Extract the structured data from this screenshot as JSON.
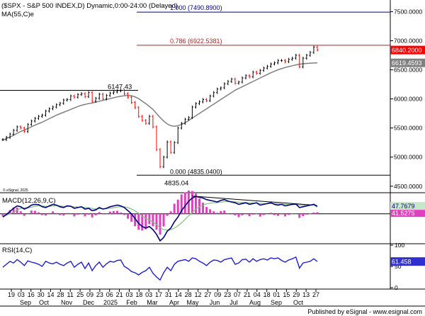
{
  "header": {
    "title": "($SPX - S&P 500 INDEX,D) Dynamic,0:00-24:00 (Delayed)",
    "ma_label": "MA(55,C)e",
    "watermark": "© eSignal, 2025"
  },
  "footer": {
    "text": "Published by eSignal - www.esignal.com"
  },
  "colors": {
    "up": "#000000",
    "down": "#ff0000",
    "ma": "#808080",
    "fib_top": "#00008b",
    "fib_786": "#b22222",
    "last_price_bg": "#ff0000",
    "macd_line": "#000080",
    "macd_signal": "#7fbf7f",
    "macd_hist": "#e040c0",
    "rsi_line": "#1f1fcf",
    "panel_bg": "#ffffff"
  },
  "chart_data": [
    {
      "type": "line",
      "panel": "price",
      "series": [
        {
          "name": "$SPX",
          "values": [
            5300,
            5340,
            5395,
            5460,
            5520,
            5500,
            5440,
            5560,
            5620,
            5665,
            5700,
            5720,
            5790,
            5830,
            5860,
            5900,
            5925,
            5980,
            5990,
            6050,
            6030,
            6075,
            6090,
            6040,
            6110,
            5960,
            6010,
            6080,
            6000,
            6060,
            6100,
            6120,
            6140,
            6147.43,
            6090,
            6030,
            5940,
            5850,
            5700,
            5630,
            5580,
            5700,
            5520,
            5130,
            4835.04,
            5000,
            5260,
            5080,
            5250,
            5500,
            5580,
            5650,
            5680,
            5860,
            5920,
            5950,
            5990,
            5970,
            6050,
            6110,
            6170,
            6190,
            6260,
            6300,
            6340,
            6270,
            6290,
            6360,
            6400,
            6380,
            6460,
            6440,
            6490,
            6530,
            6560,
            6600,
            6620,
            6660,
            6660,
            6640,
            6680,
            6700,
            6750,
            6550,
            6700,
            6750,
            6800,
            6890,
            6840.2
          ]
        },
        {
          "name": "MA(55,C)e",
          "values": [
            5290,
            5320,
            5345,
            5375,
            5410,
            5440,
            5465,
            5490,
            5520,
            5550,
            5575,
            5600,
            5630,
            5660,
            5690,
            5720,
            5745,
            5770,
            5795,
            5820,
            5845,
            5870,
            5890,
            5905,
            5920,
            5930,
            5945,
            5960,
            5975,
            5990,
            6005,
            6020,
            6035,
            6045,
            6055,
            6060,
            6055,
            6035,
            6005,
            5960,
            5920,
            5870,
            5820,
            5750,
            5680,
            5620,
            5570,
            5540,
            5530,
            5540,
            5560,
            5590,
            5630,
            5670,
            5710,
            5750,
            5790,
            5830,
            5870,
            5910,
            5950,
            5990,
            6030,
            6070,
            6110,
            6150,
            6180,
            6210,
            6240,
            6270,
            6300,
            6330,
            6360,
            6390,
            6420,
            6450,
            6475,
            6500,
            6520,
            6540,
            6555,
            6570,
            6585,
            6597,
            6604,
            6610,
            6614,
            6617,
            6619.4593
          ]
        }
      ],
      "ylim": [
        4400,
        7700
      ],
      "y_ticks": [
        "7500.0000",
        "7000.0000",
        "6500.0000",
        "6000.0000",
        "5500.0000",
        "5000.0000",
        "4500.0000"
      ],
      "last_price": "6840.2000",
      "ma_last": "6619.4593",
      "levels": [
        {
          "value": 7490.89,
          "label": "1.000 (7490.8900)",
          "color": "#00008b"
        },
        {
          "value": 6922.5381,
          "label": "0.786 (6922.5381)",
          "color": "#b22222"
        },
        {
          "value": 6147.43,
          "label": "",
          "color": "#000000"
        },
        {
          "value": 4835.04,
          "label": "0.000 (4835.0400)",
          "color": "#000000"
        }
      ],
      "annotations": [
        "6147.43",
        "4835.04"
      ]
    },
    {
      "type": "line",
      "panel": "macd",
      "title": "MACD(12,26,9,C)",
      "series": [
        {
          "name": "MACD",
          "values": [
            -20,
            -5,
            15,
            35,
            50,
            45,
            30,
            40,
            55,
            60,
            58,
            45,
            40,
            50,
            60,
            55,
            45,
            40,
            50,
            48,
            35,
            40,
            45,
            30,
            35,
            20,
            25,
            40,
            30,
            35,
            45,
            50,
            55,
            50,
            40,
            20,
            0,
            -30,
            -60,
            -80,
            -90,
            -80,
            -100,
            -130,
            -170,
            -150,
            -110,
            -90,
            -50,
            -20,
            20,
            50,
            80,
            100,
            110,
            105,
            100,
            90,
            85,
            80,
            75,
            85,
            90,
            80,
            75,
            70,
            60,
            65,
            70,
            60,
            65,
            70,
            55,
            60,
            65,
            70,
            60,
            55,
            60,
            50,
            55,
            60,
            62,
            40,
            45,
            50,
            55,
            60,
            47.7679
          ]
        },
        {
          "name": "Signal",
          "values": [
            -10,
            -8,
            0,
            10,
            25,
            35,
            38,
            38,
            42,
            48,
            52,
            50,
            47,
            47,
            50,
            52,
            50,
            47,
            47,
            48,
            45,
            43,
            43,
            40,
            38,
            34,
            31,
            33,
            32,
            33,
            36,
            39,
            43,
            45,
            44,
            39,
            31,
            19,
            3,
            -14,
            -29,
            -39,
            -51,
            -67,
            -88,
            -100,
            -102,
            -100,
            -90,
            -76,
            -57,
            -35,
            -12,
            10,
            30,
            45,
            56,
            63,
            67,
            70,
            71,
            74,
            77,
            78,
            77,
            76,
            73,
            71,
            71,
            69,
            68,
            68,
            66,
            65,
            65,
            66,
            65,
            63,
            62,
            60,
            59,
            59,
            60,
            56,
            54,
            53,
            54,
            55,
            41.5275
          ]
        }
      ],
      "last_values": [
        "47.7679",
        "41.5275"
      ]
    },
    {
      "type": "line",
      "panel": "rsi",
      "title": "RSI(14,C)",
      "series": [
        {
          "name": "RSI",
          "values": [
            48,
            55,
            62,
            58,
            66,
            60,
            52,
            63,
            60,
            58,
            55,
            50,
            62,
            58,
            56,
            60,
            55,
            52,
            58,
            62,
            48,
            55,
            60,
            45,
            58,
            40,
            52,
            60,
            48,
            56,
            62,
            60,
            64,
            65,
            50,
            45,
            38,
            35,
            30,
            36,
            40,
            48,
            34,
            25,
            18,
            35,
            48,
            40,
            55,
            62,
            64,
            66,
            62,
            70,
            68,
            62,
            58,
            52,
            60,
            65,
            64,
            60,
            66,
            68,
            70,
            55,
            58,
            66,
            67,
            60,
            68,
            62,
            66,
            68,
            65,
            70,
            68,
            70,
            64,
            60,
            65,
            68,
            72,
            46,
            58,
            60,
            62,
            68,
            61.458
          ]
        }
      ],
      "ylim": [
        0,
        100
      ],
      "y_ticks": [
        "100",
        "50",
        "0"
      ],
      "last_value": "61.458"
    }
  ],
  "x_axis": {
    "day_labels": [
      "19",
      "03",
      "16",
      "30",
      "14",
      "28",
      "11",
      "25",
      "09",
      "23",
      "06",
      "21",
      "03",
      "18",
      "03",
      "17",
      "31",
      "14",
      "28",
      "12",
      "27",
      "09",
      "23",
      "07",
      "21",
      "04",
      "18",
      "01",
      "15",
      "29",
      "13",
      "27"
    ],
    "month_labels": [
      "Sep",
      "Oct",
      "Nov",
      "Dec",
      "2025",
      "Feb",
      "Mar",
      "Apr",
      "May",
      "Jun",
      "Jul",
      "Aug",
      "Sep",
      "Oct"
    ]
  }
}
